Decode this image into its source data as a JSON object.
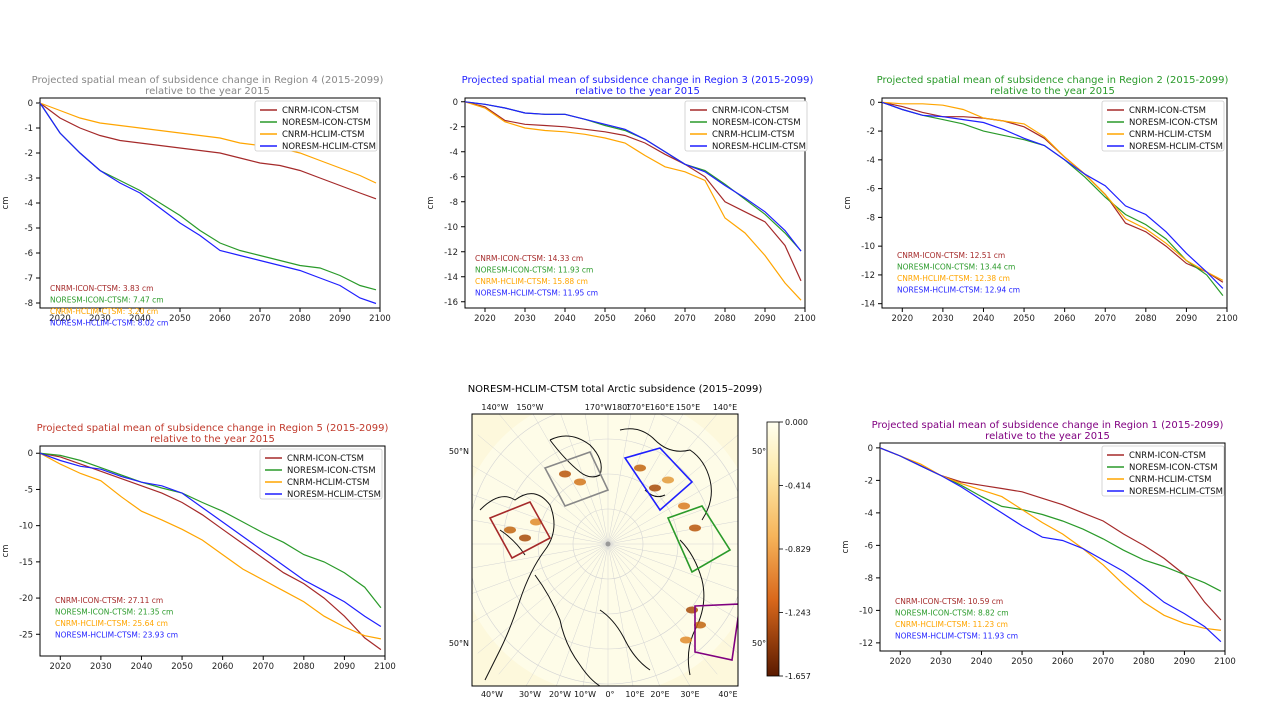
{
  "colors": {
    "CNRM-ICON-CTSM": "#a52a2a",
    "NORESM-ICON-CTSM": "#2a9a2a",
    "CNRM-HCLIM-CTSM": "#ffa500",
    "NORESM-HCLIM-CTSM": "#1f1fff"
  },
  "chart_data": [
    {
      "id": "region4",
      "type": "line",
      "title": "Projected spatial mean of subsidence change in Region 4 (2015-2099)",
      "subtitle": "relative to the year 2015",
      "title_color": "#888888",
      "ylabel": "cm",
      "xlim": [
        2015,
        2100
      ],
      "ylim": [
        -8.2,
        0.2
      ],
      "xticks": [
        2020,
        2030,
        2040,
        2050,
        2060,
        2070,
        2080,
        2090,
        2100
      ],
      "yticks": [
        0,
        -1,
        -2,
        -3,
        -4,
        -5,
        -6,
        -7,
        -8
      ],
      "x": [
        2015,
        2020,
        2025,
        2030,
        2035,
        2040,
        2045,
        2050,
        2055,
        2060,
        2065,
        2070,
        2075,
        2080,
        2085,
        2090,
        2095,
        2099
      ],
      "series": [
        {
          "name": "CNRM-ICON-CTSM",
          "values": [
            0,
            -0.6,
            -1.0,
            -1.3,
            -1.5,
            -1.6,
            -1.7,
            -1.8,
            -1.9,
            -2.0,
            -2.2,
            -2.4,
            -2.5,
            -2.7,
            -3.0,
            -3.3,
            -3.6,
            -3.83
          ]
        },
        {
          "name": "NORESM-ICON-CTSM",
          "values": [
            0,
            -1.2,
            -2.0,
            -2.7,
            -3.1,
            -3.5,
            -4.0,
            -4.5,
            -5.1,
            -5.6,
            -5.9,
            -6.1,
            -6.3,
            -6.5,
            -6.6,
            -6.9,
            -7.3,
            -7.47
          ]
        },
        {
          "name": "CNRM-HCLIM-CTSM",
          "values": [
            0,
            -0.3,
            -0.6,
            -0.8,
            -0.9,
            -1.0,
            -1.1,
            -1.2,
            -1.3,
            -1.4,
            -1.6,
            -1.7,
            -1.8,
            -2.0,
            -2.3,
            -2.6,
            -2.9,
            -3.2
          ]
        },
        {
          "name": "NORESM-HCLIM-CTSM",
          "values": [
            0,
            -1.2,
            -2.0,
            -2.7,
            -3.2,
            -3.6,
            -4.2,
            -4.8,
            -5.3,
            -5.9,
            -6.1,
            -6.3,
            -6.5,
            -6.7,
            -7.0,
            -7.3,
            -7.8,
            -8.02
          ]
        }
      ],
      "annotations": [
        "CNRM-ICON-CTSM: 3.83 cm",
        "NORESM-ICON-CTSM: 7.47 cm",
        "CNRM-HCLIM-CTSM: 3.20 cm",
        "NORESM-HCLIM-CTSM: 8.02 cm"
      ]
    },
    {
      "id": "region3",
      "type": "line",
      "title": "Projected spatial mean of subsidence change in Region 3 (2015-2099)",
      "subtitle": "relative to the year 2015",
      "title_color": "#1f1fff",
      "ylabel": "cm",
      "xlim": [
        2015,
        2100
      ],
      "ylim": [
        -16.5,
        0.3
      ],
      "xticks": [
        2020,
        2030,
        2040,
        2050,
        2060,
        2070,
        2080,
        2090,
        2100
      ],
      "yticks": [
        0,
        -2,
        -4,
        -6,
        -8,
        -10,
        -12,
        -14,
        -16
      ],
      "x": [
        2015,
        2020,
        2025,
        2030,
        2035,
        2040,
        2045,
        2050,
        2055,
        2060,
        2065,
        2070,
        2075,
        2080,
        2085,
        2090,
        2095,
        2099
      ],
      "series": [
        {
          "name": "CNRM-ICON-CTSM",
          "values": [
            0,
            -0.4,
            -1.5,
            -1.8,
            -1.9,
            -2.0,
            -2.2,
            -2.4,
            -2.7,
            -3.3,
            -4.2,
            -5.0,
            -6.0,
            -8.0,
            -8.8,
            -9.6,
            -11.5,
            -14.33
          ]
        },
        {
          "name": "NORESM-ICON-CTSM",
          "values": [
            0,
            -0.2,
            -0.5,
            -0.9,
            -1.0,
            -1.0,
            -1.4,
            -1.9,
            -2.3,
            -3.0,
            -4.0,
            -5.0,
            -5.5,
            -6.6,
            -7.8,
            -9.0,
            -10.5,
            -11.93
          ]
        },
        {
          "name": "CNRM-HCLIM-CTSM",
          "values": [
            0,
            -0.5,
            -1.6,
            -2.1,
            -2.3,
            -2.4,
            -2.6,
            -2.9,
            -3.3,
            -4.3,
            -5.2,
            -5.6,
            -6.3,
            -9.3,
            -10.5,
            -12.3,
            -14.5,
            -15.88
          ]
        },
        {
          "name": "NORESM-HCLIM-CTSM",
          "values": [
            0,
            -0.2,
            -0.5,
            -0.9,
            -1.0,
            -1.0,
            -1.4,
            -1.8,
            -2.2,
            -3.0,
            -4.0,
            -5.0,
            -5.6,
            -6.7,
            -7.7,
            -8.8,
            -10.3,
            -11.95
          ]
        }
      ],
      "annotations": [
        "CNRM-ICON-CTSM: 14.33 cm",
        "NORESM-ICON-CTSM: 11.93 cm",
        "CNRM-HCLIM-CTSM: 15.88 cm",
        "NORESM-HCLIM-CTSM: 11.95 cm"
      ]
    },
    {
      "id": "region2",
      "type": "line",
      "title": "Projected spatial mean of subsidence change in Region 2 (2015-2099)",
      "subtitle": "relative to the year 2015",
      "title_color": "#2a9a2a",
      "ylabel": "cm",
      "xlim": [
        2015,
        2100
      ],
      "ylim": [
        -14.3,
        0.3
      ],
      "xticks": [
        2020,
        2030,
        2040,
        2050,
        2060,
        2070,
        2080,
        2090,
        2100
      ],
      "yticks": [
        0,
        -2,
        -4,
        -6,
        -8,
        -10,
        -12,
        -14
      ],
      "x": [
        2015,
        2020,
        2025,
        2030,
        2035,
        2040,
        2045,
        2050,
        2055,
        2060,
        2065,
        2070,
        2075,
        2080,
        2085,
        2090,
        2095,
        2099
      ],
      "series": [
        {
          "name": "CNRM-ICON-CTSM",
          "values": [
            0,
            -0.3,
            -0.7,
            -1.0,
            -1.0,
            -1.1,
            -1.3,
            -1.7,
            -2.5,
            -3.8,
            -5.0,
            -6.4,
            -8.4,
            -9.0,
            -10.0,
            -11.2,
            -11.8,
            -12.51
          ]
        },
        {
          "name": "NORESM-ICON-CTSM",
          "values": [
            0,
            -0.5,
            -0.9,
            -1.2,
            -1.5,
            -2.0,
            -2.3,
            -2.6,
            -3.0,
            -4.0,
            -5.2,
            -6.6,
            -7.8,
            -8.5,
            -9.5,
            -11.0,
            -12.0,
            -13.44
          ]
        },
        {
          "name": "CNRM-HCLIM-CTSM",
          "values": [
            0,
            -0.1,
            -0.1,
            -0.2,
            -0.5,
            -1.1,
            -1.3,
            -1.5,
            -2.4,
            -3.8,
            -5.0,
            -6.4,
            -8.1,
            -8.8,
            -9.8,
            -11.0,
            -11.8,
            -12.38
          ]
        },
        {
          "name": "NORESM-HCLIM-CTSM",
          "values": [
            0,
            -0.5,
            -0.9,
            -1.0,
            -1.2,
            -1.4,
            -1.9,
            -2.5,
            -3.0,
            -4.0,
            -5.0,
            -5.8,
            -7.2,
            -7.8,
            -9.0,
            -10.5,
            -11.8,
            -12.94
          ]
        }
      ],
      "annotations": [
        "CNRM-ICON-CTSM: 12.51 cm",
        "NORESM-ICON-CTSM: 13.44 cm",
        "CNRM-HCLIM-CTSM: 12.38 cm",
        "NORESM-HCLIM-CTSM: 12.94 cm"
      ]
    },
    {
      "id": "region5",
      "type": "line",
      "title": "Projected spatial mean of subsidence change in Region 5 (2015-2099)",
      "subtitle": "relative to the year 2015",
      "title_color": "#c0392b",
      "ylabel": "cm",
      "xlim": [
        2015,
        2100
      ],
      "ylim": [
        -28,
        1
      ],
      "xticks": [
        2020,
        2030,
        2040,
        2050,
        2060,
        2070,
        2080,
        2090,
        2100
      ],
      "yticks": [
        0,
        -5,
        -10,
        -15,
        -20,
        -25
      ],
      "x": [
        2015,
        2020,
        2025,
        2030,
        2035,
        2040,
        2045,
        2050,
        2055,
        2060,
        2065,
        2070,
        2075,
        2080,
        2085,
        2090,
        2095,
        2099
      ],
      "series": [
        {
          "name": "CNRM-ICON-CTSM",
          "values": [
            0,
            -0.5,
            -1.5,
            -2.5,
            -3.5,
            -4.5,
            -5.5,
            -6.8,
            -8.5,
            -10.5,
            -12.5,
            -14.5,
            -16.5,
            -18.0,
            -20.0,
            -22.5,
            -25.5,
            -27.11
          ]
        },
        {
          "name": "NORESM-ICON-CTSM",
          "values": [
            0,
            -0.3,
            -1.0,
            -2.0,
            -3.0,
            -4.0,
            -4.8,
            -5.5,
            -6.8,
            -8.0,
            -9.5,
            -11.0,
            -12.3,
            -14.0,
            -15.0,
            -16.5,
            -18.5,
            -21.35
          ]
        },
        {
          "name": "CNRM-HCLIM-CTSM",
          "values": [
            0,
            -1.5,
            -2.8,
            -3.8,
            -6.0,
            -8.0,
            -9.2,
            -10.5,
            -12.0,
            -14.0,
            -16.0,
            -17.5,
            -19.0,
            -20.5,
            -22.5,
            -24.0,
            -25.2,
            -25.64
          ]
        },
        {
          "name": "NORESM-HCLIM-CTSM",
          "values": [
            0,
            -1.0,
            -1.8,
            -2.2,
            -3.2,
            -4.0,
            -4.5,
            -5.5,
            -7.5,
            -9.5,
            -11.5,
            -13.5,
            -15.5,
            -17.5,
            -19.0,
            -20.5,
            -22.5,
            -23.93
          ]
        }
      ],
      "annotations": [
        "CNRM-ICON-CTSM: 27.11 cm",
        "NORESM-ICON-CTSM: 21.35 cm",
        "CNRM-HCLIM-CTSM: 25.64 cm",
        "NORESM-HCLIM-CTSM: 23.93 cm"
      ]
    },
    {
      "id": "region1",
      "type": "line",
      "title": "Projected spatial mean of subsidence change in Region 1 (2015-2099)",
      "subtitle": "relative to the year 2015",
      "title_color": "#800080",
      "ylabel": "cm",
      "xlim": [
        2015,
        2100
      ],
      "ylim": [
        -12.5,
        0.3
      ],
      "xticks": [
        2020,
        2030,
        2040,
        2050,
        2060,
        2070,
        2080,
        2090,
        2100
      ],
      "yticks": [
        0,
        -2,
        -4,
        -6,
        -8,
        -10,
        -12
      ],
      "x": [
        2015,
        2020,
        2025,
        2030,
        2035,
        2040,
        2045,
        2050,
        2055,
        2060,
        2065,
        2070,
        2075,
        2080,
        2085,
        2090,
        2095,
        2099
      ],
      "series": [
        {
          "name": "CNRM-ICON-CTSM",
          "values": [
            0,
            -0.5,
            -1.1,
            -1.7,
            -2.1,
            -2.3,
            -2.5,
            -2.7,
            -3.1,
            -3.5,
            -4.0,
            -4.5,
            -5.3,
            -6.0,
            -6.8,
            -7.8,
            -9.5,
            -10.59
          ]
        },
        {
          "name": "NORESM-ICON-CTSM",
          "values": [
            0,
            -0.5,
            -1.1,
            -1.7,
            -2.3,
            -3.0,
            -3.6,
            -3.8,
            -4.1,
            -4.5,
            -5.0,
            -5.6,
            -6.3,
            -6.9,
            -7.3,
            -7.8,
            -8.3,
            -8.82
          ]
        },
        {
          "name": "CNRM-HCLIM-CTSM",
          "values": [
            0,
            -0.5,
            -1.0,
            -1.7,
            -2.2,
            -2.6,
            -3.0,
            -3.8,
            -4.6,
            -5.3,
            -6.2,
            -7.2,
            -8.4,
            -9.5,
            -10.3,
            -10.8,
            -11.1,
            -11.23
          ]
        },
        {
          "name": "NORESM-HCLIM-CTSM",
          "values": [
            0,
            -0.5,
            -1.1,
            -1.7,
            -2.4,
            -3.2,
            -4.0,
            -4.8,
            -5.5,
            -5.7,
            -6.2,
            -6.9,
            -7.6,
            -8.5,
            -9.5,
            -10.2,
            -11.0,
            -11.93
          ]
        }
      ],
      "annotations": [
        "CNRM-ICON-CTSM: 10.59 cm",
        "NORESM-ICON-CTSM: 8.82 cm",
        "CNRM-HCLIM-CTSM: 11.23 cm",
        "NORESM-HCLIM-CTSM: 11.93 cm"
      ]
    }
  ],
  "map": {
    "title": "NORESM-HCLIM-CTSM total Arctic subsidence (2015–2099)",
    "top_labels": [
      "140°W",
      "150°W",
      "170°W180°",
      "170°E",
      "160°E",
      "150°E",
      "140°E"
    ],
    "bottom_labels": [
      "40°W",
      "30°W",
      "20°W",
      "10°W",
      "0°",
      "10°E",
      "20°E",
      "30°E",
      "40°E"
    ],
    "left_labels": [
      "50°N",
      "50°N"
    ],
    "right_labels": [
      "50°",
      "50°"
    ],
    "colorbar_ticks": [
      "0.000",
      "-0.414",
      "-0.829",
      "-1.243",
      "-1.657"
    ],
    "region_colors": [
      "#a52a2a",
      "#888888",
      "#1f1fff",
      "#2a9a2a",
      "#800080"
    ]
  }
}
